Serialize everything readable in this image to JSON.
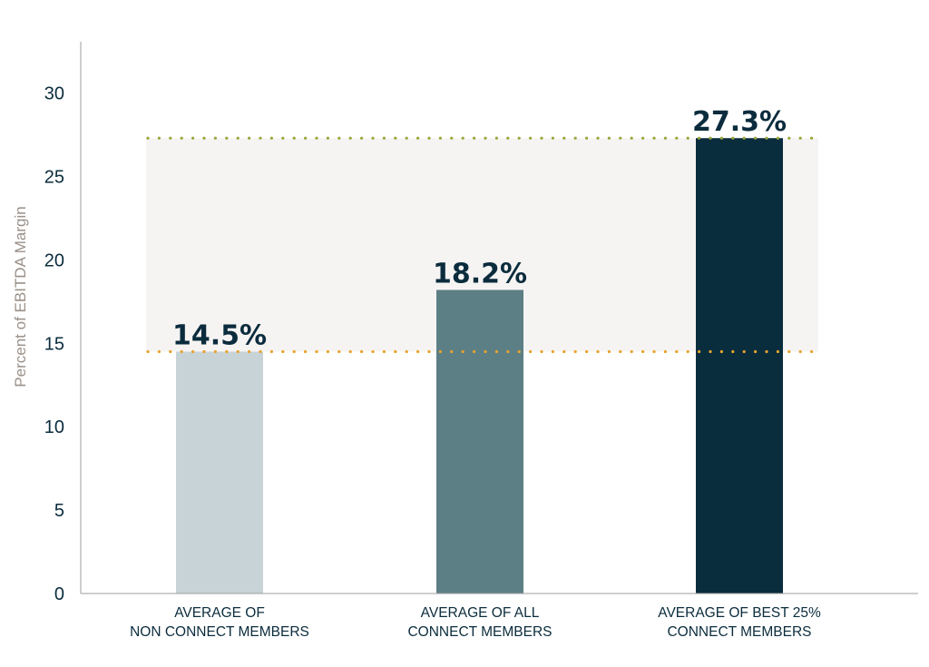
{
  "chart_data": {
    "type": "bar",
    "title": "",
    "xlabel": "",
    "ylabel": "Percent of EBITDA Margin",
    "ylim": [
      0,
      33
    ],
    "yticks": [
      0,
      5,
      10,
      15,
      20,
      25,
      30
    ],
    "grid": false,
    "categories": [
      [
        "AVERAGE OF",
        "NON CONNECT MEMBERS"
      ],
      [
        "AVERAGE OF ALL",
        "CONNECT MEMBERS"
      ],
      [
        "AVERAGE OF BEST 25%",
        "CONNECT MEMBERS"
      ]
    ],
    "values": [
      14.5,
      18.2,
      27.3
    ],
    "data_labels": [
      "14.5%",
      "18.2%",
      "27.3%"
    ],
    "bar_colors": [
      "#c7d3d7",
      "#5c7f85",
      "#0a2d3e"
    ],
    "reference_lines": [
      {
        "value": 27.3,
        "color": "#9aa63a",
        "style": "dotted"
      },
      {
        "value": 14.5,
        "color": "#e8a32c",
        "style": "dotted"
      }
    ],
    "band": {
      "from": 14.5,
      "to": 27.3,
      "color": "#f6f4f3"
    }
  }
}
